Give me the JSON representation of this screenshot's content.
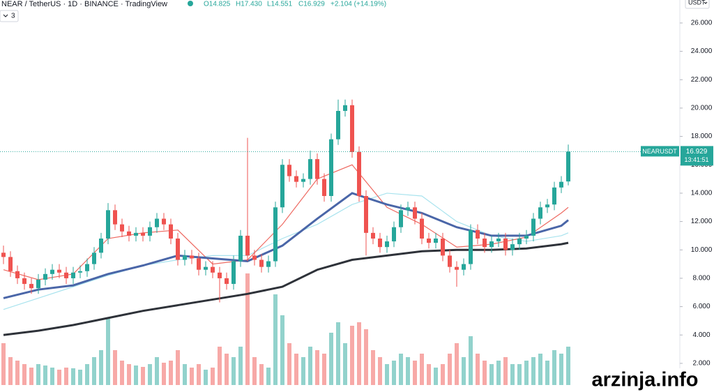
{
  "header": {
    "symbol": "NEAR / TetherUS · 1D · BINANCE · TradingView",
    "open": "O14.825",
    "high": "H17.430",
    "low": "L14.551",
    "close": "C16.929",
    "change": "+2.104 (+14.19%)",
    "indicators_count": "3"
  },
  "chart_data": {
    "type": "candlestick",
    "up_color": "#26a69a",
    "down_color": "#ef5350",
    "open": [
      9.8,
      9.5,
      8.5,
      8.0,
      7.6,
      7.3,
      7.9,
      8.3,
      8.6,
      8.4,
      8.0,
      8.4,
      8.5,
      9.0,
      9.8,
      10.8,
      12.8,
      11.8,
      11.3,
      11.0,
      11.2,
      11.0,
      11.6,
      12.2,
      11.8,
      10.8,
      9.3,
      9.6,
      9.4,
      8.6,
      8.8,
      8.4,
      8.0,
      7.6,
      9.2,
      11.0,
      9.6,
      9.3,
      8.8,
      9.2,
      13.0,
      16.0,
      15.2,
      14.8,
      15.0,
      16.4,
      15.0,
      13.8,
      17.8,
      19.8,
      20.2,
      16.9,
      13.8,
      11.2,
      10.8,
      10.2,
      10.6,
      11.6,
      12.8,
      13.0,
      12.2,
      10.8,
      10.5,
      10.8,
      9.6,
      8.8,
      8.6,
      9.0,
      11.4,
      10.8,
      10.2,
      10.6,
      10.8,
      10.0,
      10.4,
      10.8,
      11.0,
      12.2,
      13.0,
      13.2,
      14.4,
      14.825
    ],
    "high": [
      10.3,
      9.9,
      8.9,
      8.4,
      8.0,
      8.3,
      8.7,
      9.0,
      9.0,
      8.8,
      8.8,
      8.9,
      9.4,
      10.2,
      11.2,
      13.3,
      13.2,
      12.2,
      11.7,
      11.6,
      11.6,
      12.0,
      12.6,
      12.6,
      12.2,
      11.2,
      10.0,
      10.0,
      9.8,
      9.2,
      9.2,
      8.8,
      8.4,
      9.6,
      11.4,
      17.9,
      10.0,
      9.7,
      9.6,
      13.4,
      16.4,
      16.4,
      15.6,
      15.4,
      17.0,
      16.8,
      15.4,
      18.2,
      20.6,
      20.6,
      20.6,
      17.3,
      14.2,
      11.6,
      11.2,
      11.0,
      12.0,
      13.2,
      13.4,
      13.4,
      12.6,
      11.2,
      11.2,
      11.2,
      10.0,
      9.2,
      9.4,
      11.8,
      11.8,
      11.2,
      11.0,
      11.2,
      11.2,
      10.8,
      11.2,
      11.4,
      12.6,
      13.4,
      13.6,
      14.8,
      15.2,
      17.43
    ],
    "low": [
      9.0,
      8.1,
      7.6,
      7.2,
      6.9,
      6.9,
      7.5,
      7.9,
      8.0,
      7.6,
      7.6,
      8.0,
      8.1,
      8.6,
      9.4,
      10.4,
      11.4,
      10.9,
      10.6,
      10.6,
      10.6,
      10.6,
      11.2,
      11.4,
      10.4,
      8.9,
      8.9,
      9.0,
      8.2,
      8.2,
      8.0,
      6.3,
      7.2,
      7.2,
      8.8,
      9.2,
      8.9,
      8.4,
      8.4,
      8.8,
      12.6,
      14.8,
      14.4,
      14.4,
      14.6,
      14.6,
      13.4,
      13.4,
      17.4,
      19.4,
      16.5,
      13.4,
      9.6,
      10.4,
      9.8,
      9.8,
      10.2,
      11.2,
      12.4,
      11.8,
      10.4,
      10.1,
      10.1,
      9.2,
      8.4,
      7.4,
      8.2,
      8.6,
      10.4,
      9.8,
      9.8,
      10.2,
      9.6,
      9.6,
      10.0,
      10.4,
      10.6,
      11.8,
      12.6,
      12.8,
      14.0,
      14.551
    ],
    "close": [
      9.5,
      8.5,
      8.0,
      7.6,
      7.3,
      7.9,
      8.3,
      8.6,
      8.4,
      8.0,
      8.4,
      8.5,
      9.0,
      9.8,
      10.8,
      12.8,
      11.8,
      11.3,
      11.0,
      11.2,
      11.0,
      11.6,
      12.2,
      11.8,
      10.8,
      9.3,
      9.6,
      9.4,
      8.6,
      8.8,
      8.4,
      8.0,
      7.6,
      9.2,
      11.0,
      9.6,
      9.3,
      8.8,
      9.2,
      13.0,
      16.0,
      15.2,
      14.8,
      15.0,
      16.4,
      15.0,
      13.8,
      17.8,
      19.8,
      20.2,
      16.9,
      13.8,
      11.2,
      10.8,
      10.2,
      10.6,
      11.6,
      12.8,
      13.0,
      12.2,
      10.8,
      10.5,
      10.8,
      9.6,
      8.8,
      8.6,
      9.0,
      11.4,
      10.8,
      10.2,
      10.6,
      10.8,
      10.0,
      10.4,
      10.8,
      11.0,
      12.2,
      13.0,
      13.2,
      14.4,
      14.8,
      16.929
    ],
    "volume": [
      60,
      40,
      35,
      30,
      25,
      30,
      28,
      25,
      22,
      25,
      24,
      22,
      30,
      40,
      50,
      95,
      50,
      35,
      30,
      28,
      26,
      30,
      40,
      32,
      35,
      50,
      30,
      25,
      30,
      22,
      25,
      55,
      45,
      40,
      55,
      160,
      40,
      30,
      25,
      130,
      100,
      60,
      45,
      40,
      55,
      50,
      45,
      75,
      90,
      60,
      85,
      90,
      80,
      50,
      40,
      30,
      35,
      45,
      40,
      35,
      45,
      30,
      25,
      30,
      45,
      60,
      40,
      70,
      45,
      35,
      30,
      35,
      40,
      30,
      30,
      35,
      40,
      45,
      35,
      50,
      45,
      55
    ],
    "vlim": [
      0,
      170
    ],
    "ylim": [
      -0.02,
      27.62
    ],
    "yticks": [
      {
        "value": 2,
        "label": "2.000"
      },
      {
        "value": 4,
        "label": "4.000"
      },
      {
        "value": 6,
        "label": "6.000"
      },
      {
        "value": 8,
        "label": "8.000"
      },
      {
        "value": 10,
        "label": "10.000"
      },
      {
        "value": 12,
        "label": "12.000"
      },
      {
        "value": 14,
        "label": "14.000"
      },
      {
        "value": 16,
        "label": "16.000"
      },
      {
        "value": 18,
        "label": "18.000"
      },
      {
        "value": 20,
        "label": "20.000"
      },
      {
        "value": 22,
        "label": "22.000"
      },
      {
        "value": 24,
        "label": "24.000"
      },
      {
        "value": 26,
        "label": "26.000"
      }
    ],
    "currency": "USDT",
    "last_price": {
      "symbol": "NEARUSDT",
      "value": 16.929,
      "countdown": "13:41:51",
      "color": "#26a69a"
    },
    "moving_averages": {
      "x": [
        0,
        5,
        10,
        15,
        20,
        25,
        30,
        35,
        40,
        45,
        50,
        55,
        60,
        65,
        70,
        75,
        80,
        81
      ],
      "series": [
        {
          "color": "#a8e3ee",
          "width": 1.2,
          "values": [
            5.8,
            6.6,
            7.4,
            8.2,
            8.9,
            9.3,
            9.6,
            9.6,
            10.8,
            11.8,
            13.2,
            14.0,
            13.8,
            12.0,
            11.0,
            10.6,
            11.0,
            11.2
          ]
        },
        {
          "color": "#ee6a62",
          "width": 1.2,
          "values": [
            8.6,
            7.9,
            8.3,
            10.8,
            11.2,
            11.4,
            9.0,
            9.3,
            11.8,
            15.0,
            16.0,
            13.0,
            11.8,
            10.2,
            10.4,
            10.9,
            12.6,
            13.0
          ]
        },
        {
          "color": "#4a66a8",
          "width": 3,
          "values": [
            6.6,
            7.2,
            7.5,
            8.3,
            8.9,
            9.6,
            9.4,
            9.2,
            10.3,
            12.2,
            14.0,
            13.2,
            12.6,
            11.6,
            11.0,
            11.0,
            11.7,
            12.1
          ]
        },
        {
          "color": "#2e3239",
          "width": 3,
          "values": [
            4.0,
            4.3,
            4.7,
            5.2,
            5.7,
            6.1,
            6.5,
            6.9,
            7.4,
            8.6,
            9.3,
            9.6,
            9.9,
            10.0,
            10.0,
            10.1,
            10.4,
            10.5
          ]
        }
      ]
    }
  },
  "watermark": "arzinja.info"
}
